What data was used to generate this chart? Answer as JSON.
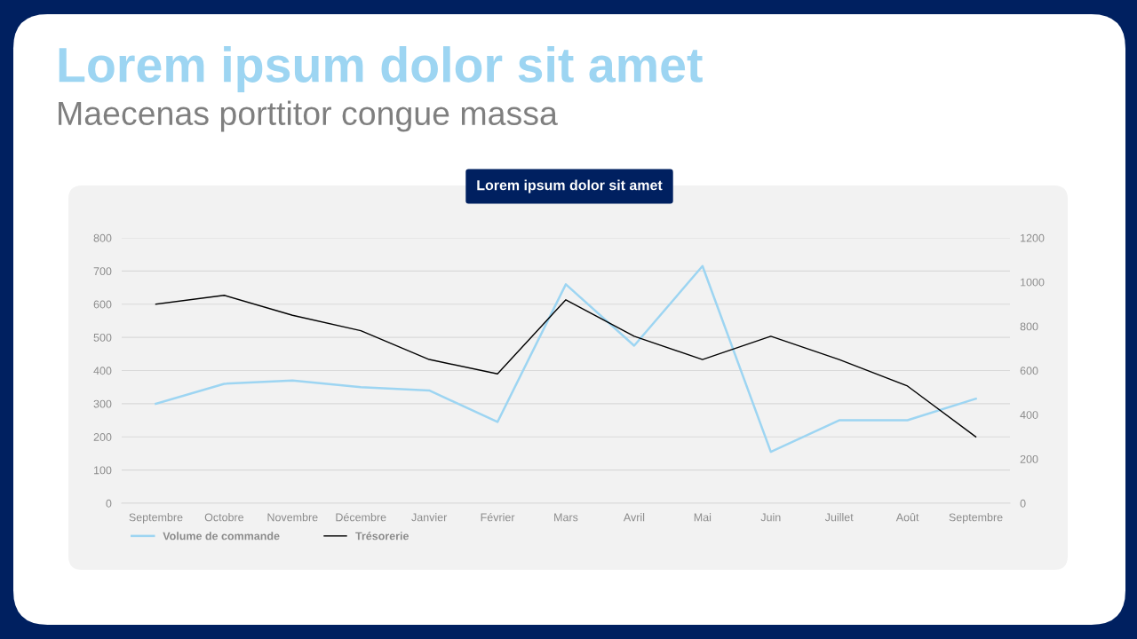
{
  "chart_data": {
    "type": "line",
    "title": "Lorem ipsum dolor sit amet",
    "subtitle": "Maecenas porttitor congue massa",
    "annotations": [
      "Lorem ipsum dolor sit amet"
    ],
    "categories": [
      "Septembre",
      "Octobre",
      "Novembre",
      "Décembre",
      "Janvier",
      "Février",
      "Mars",
      "Avril",
      "Mai",
      "Juin",
      "Juillet",
      "Août",
      "Septembre"
    ],
    "series": [
      {
        "name": "Volume de commande",
        "color": "#9dd5f2",
        "values": [
          300,
          360,
          370,
          350,
          340,
          245,
          660,
          475,
          715,
          155,
          250,
          250,
          315
        ]
      },
      {
        "name": "Trésorerie",
        "color": "#000000",
        "axis": "y2",
        "values": [
          900,
          940,
          850,
          780,
          650,
          585,
          920,
          755,
          650,
          755,
          650,
          530,
          300
        ]
      }
    ],
    "ylim": [
      0,
      800
    ],
    "yticks": [
      0,
      100,
      200,
      300,
      400,
      500,
      600,
      700,
      800
    ],
    "y2lim": [
      0,
      1200
    ],
    "y2ticks": [
      0,
      200,
      400,
      600,
      800,
      1000,
      1200
    ],
    "grid": "y",
    "legend": "bottom left",
    "marker": "none",
    "line_style": "solid"
  }
}
